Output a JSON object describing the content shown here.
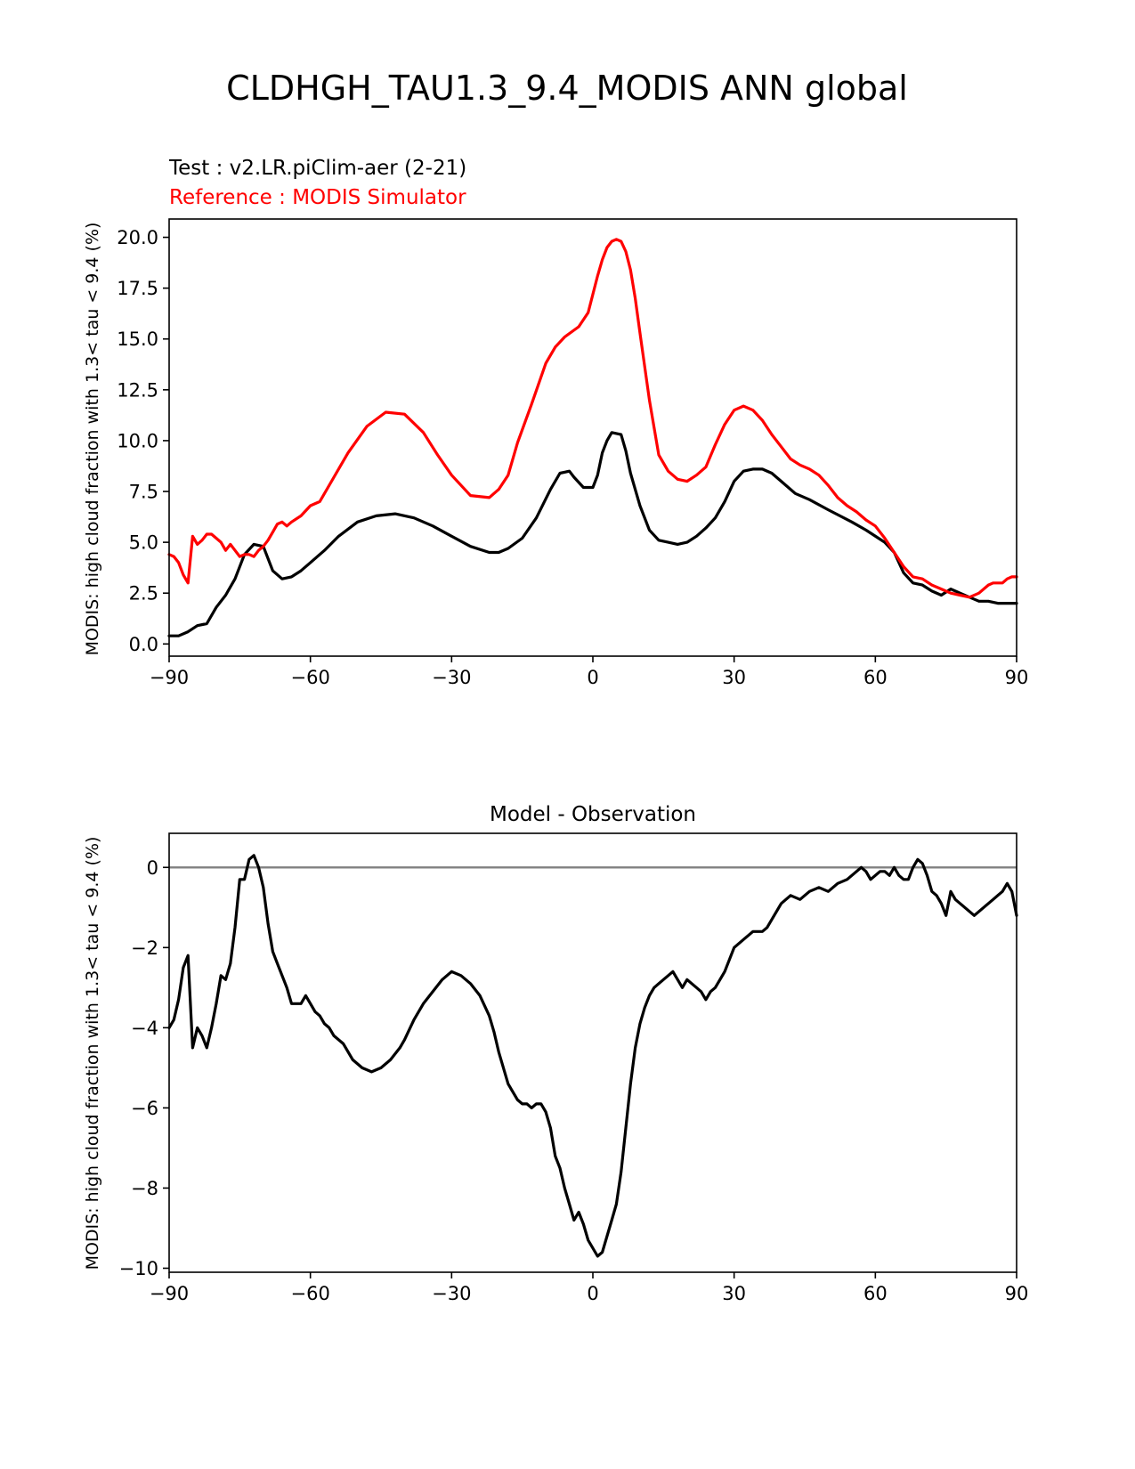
{
  "figure": {
    "title": "CLDHGH_TAU1.3_9.4_MODIS ANN global"
  },
  "colors": {
    "test": "#000000",
    "reference": "#ff0000",
    "zero_line": "#808080"
  },
  "chart_data": [
    {
      "type": "line",
      "name": "top",
      "test_label": "Test : v2.LR.piClim-aer (2-21)",
      "reference_label": "Reference : MODIS Simulator",
      "xlabel": "",
      "ylabel": "MODIS: high cloud fraction with 1.3< tau < 9.4 (%)",
      "xlim": [
        -90,
        90
      ],
      "ylim": [
        -0.6,
        20.9
      ],
      "xticks": [
        -90,
        -60,
        -30,
        0,
        30,
        60,
        90
      ],
      "xtick_labels": [
        "−90",
        "−60",
        "−30",
        "0",
        "30",
        "60",
        "90"
      ],
      "yticks": [
        0.0,
        2.5,
        5.0,
        7.5,
        10.0,
        12.5,
        15.0,
        17.5,
        20.0
      ],
      "ytick_labels": [
        "0.0",
        "2.5",
        "5.0",
        "7.5",
        "10.0",
        "12.5",
        "15.0",
        "17.5",
        "20.0"
      ],
      "grid": false,
      "series": [
        {
          "role": "test",
          "color": "#000000",
          "x": [
            -90,
            -88,
            -86,
            -84,
            -82,
            -80,
            -78,
            -76,
            -74,
            -72,
            -70,
            -68,
            -66,
            -64,
            -62,
            -60,
            -57,
            -54,
            -50,
            -46,
            -42,
            -38,
            -34,
            -30,
            -26,
            -22,
            -20,
            -18,
            -15,
            -12,
            -9,
            -7,
            -5,
            -4,
            -2,
            0,
            1,
            2,
            3,
            4,
            6,
            7,
            8,
            10,
            12,
            14,
            16,
            18,
            20,
            22,
            24,
            26,
            28,
            30,
            32,
            34,
            36,
            38,
            40,
            43,
            46,
            50,
            55,
            58,
            62,
            64,
            66,
            68,
            70,
            72,
            74,
            76,
            78,
            80,
            82,
            84,
            86,
            88,
            90
          ],
          "y": [
            0.4,
            0.4,
            0.6,
            0.9,
            1.0,
            1.8,
            2.4,
            3.2,
            4.4,
            4.9,
            4.8,
            3.6,
            3.2,
            3.3,
            3.6,
            4.0,
            4.6,
            5.3,
            6.0,
            6.3,
            6.4,
            6.2,
            5.8,
            5.3,
            4.8,
            4.5,
            4.5,
            4.7,
            5.2,
            6.2,
            7.6,
            8.4,
            8.5,
            8.2,
            7.7,
            7.7,
            8.3,
            9.4,
            10.0,
            10.4,
            10.3,
            9.5,
            8.4,
            6.8,
            5.6,
            5.1,
            5.0,
            4.9,
            5.0,
            5.3,
            5.7,
            6.2,
            7.0,
            8.0,
            8.5,
            8.6,
            8.6,
            8.4,
            8.0,
            7.4,
            7.1,
            6.6,
            6.0,
            5.6,
            5.0,
            4.5,
            3.5,
            3.0,
            2.9,
            2.6,
            2.4,
            2.7,
            2.5,
            2.3,
            2.1,
            2.1,
            2.0,
            2.0,
            2.0
          ]
        },
        {
          "role": "reference",
          "color": "#ff0000",
          "x": [
            -90,
            -89,
            -88,
            -87,
            -86,
            -85,
            -84,
            -83,
            -82,
            -81,
            -80,
            -79,
            -78,
            -77,
            -76,
            -75,
            -74,
            -73,
            -72,
            -71,
            -70,
            -69,
            -68,
            -67,
            -66,
            -65,
            -64,
            -62,
            -60,
            -58,
            -55,
            -52,
            -48,
            -44,
            -40,
            -36,
            -33,
            -30,
            -26,
            -22,
            -20,
            -18,
            -16,
            -13,
            -10,
            -8,
            -6,
            -3,
            -1,
            0,
            1,
            2,
            3,
            4,
            5,
            6,
            7,
            8,
            9,
            10,
            12,
            14,
            16,
            18,
            20,
            22,
            24,
            26,
            28,
            30,
            32,
            34,
            36,
            38,
            40,
            42,
            44,
            46,
            48,
            50,
            52,
            54,
            56,
            58,
            60,
            62,
            64,
            66,
            68,
            70,
            72,
            74,
            76,
            78,
            80,
            82,
            84,
            85,
            86,
            87,
            88,
            89,
            90
          ],
          "y": [
            4.4,
            4.3,
            4.0,
            3.4,
            3.0,
            5.3,
            4.9,
            5.1,
            5.4,
            5.4,
            5.2,
            5.0,
            4.6,
            4.9,
            4.6,
            4.3,
            4.4,
            4.4,
            4.3,
            4.6,
            4.8,
            5.1,
            5.5,
            5.9,
            6.0,
            5.8,
            6.0,
            6.3,
            6.8,
            7.0,
            8.2,
            9.4,
            10.7,
            11.4,
            11.3,
            10.4,
            9.3,
            8.3,
            7.3,
            7.2,
            7.6,
            8.3,
            9.9,
            11.8,
            13.8,
            14.6,
            15.1,
            15.6,
            16.3,
            17.2,
            18.1,
            18.9,
            19.5,
            19.8,
            19.9,
            19.8,
            19.3,
            18.4,
            17.0,
            15.3,
            12.0,
            9.3,
            8.5,
            8.1,
            8.0,
            8.3,
            8.7,
            9.8,
            10.8,
            11.5,
            11.7,
            11.5,
            11.0,
            10.3,
            9.7,
            9.1,
            8.8,
            8.6,
            8.3,
            7.8,
            7.2,
            6.8,
            6.5,
            6.1,
            5.8,
            5.2,
            4.5,
            3.8,
            3.3,
            3.2,
            2.9,
            2.7,
            2.5,
            2.4,
            2.3,
            2.5,
            2.9,
            3.0,
            3.0,
            3.0,
            3.2,
            3.3,
            3.3
          ]
        }
      ]
    },
    {
      "type": "line",
      "name": "bottom",
      "title": "Model - Observation",
      "xlabel": "",
      "ylabel": "MODIS: high cloud fraction with 1.3< tau < 9.4 (%)",
      "xlim": [
        -90,
        90
      ],
      "ylim": [
        -10.1,
        0.85
      ],
      "xticks": [
        -90,
        -60,
        -30,
        0,
        30,
        60,
        90
      ],
      "xtick_labels": [
        "−90",
        "−60",
        "−30",
        "0",
        "30",
        "60",
        "90"
      ],
      "yticks": [
        -10,
        -8,
        -6,
        -4,
        -2,
        0
      ],
      "ytick_labels": [
        "−10",
        "−8",
        "−6",
        "−4",
        "−2",
        "0"
      ],
      "hline": 0,
      "grid": false,
      "series": [
        {
          "role": "difference",
          "color": "#000000",
          "x": [
            -90,
            -89,
            -88,
            -87,
            -86,
            -85,
            -84,
            -83,
            -82,
            -81,
            -80,
            -79,
            -78,
            -77,
            -76,
            -75,
            -74,
            -73,
            -72,
            -71,
            -70,
            -69,
            -68,
            -67,
            -66,
            -65,
            -64,
            -63,
            -62,
            -61,
            -60,
            -59,
            -58,
            -57,
            -56,
            -55,
            -53,
            -51,
            -49,
            -47,
            -45,
            -43,
            -41,
            -40,
            -38,
            -36,
            -34,
            -32,
            -30,
            -28,
            -26,
            -24,
            -22,
            -21,
            -20,
            -19,
            -18,
            -17,
            -16,
            -15,
            -14,
            -13,
            -12,
            -11,
            -10,
            -9,
            -8,
            -7,
            -6,
            -5,
            -4,
            -3,
            -2,
            -1,
            0,
            1,
            2,
            3,
            4,
            5,
            6,
            7,
            8,
            9,
            10,
            11,
            12,
            13,
            14,
            15,
            16,
            17,
            18,
            19,
            20,
            21,
            22,
            23,
            24,
            25,
            26,
            27,
            28,
            29,
            30,
            32,
            34,
            35,
            36,
            37,
            38,
            39,
            40,
            42,
            44,
            46,
            48,
            50,
            52,
            54,
            56,
            57,
            58,
            59,
            60,
            61,
            62,
            63,
            64,
            65,
            66,
            67,
            68,
            69,
            70,
            71,
            72,
            73,
            74,
            75,
            76,
            77,
            78,
            79,
            80,
            81,
            82,
            83,
            84,
            85,
            86,
            87,
            88,
            89,
            90
          ],
          "y": [
            -4.0,
            -3.8,
            -3.3,
            -2.5,
            -2.2,
            -4.5,
            -4.0,
            -4.2,
            -4.5,
            -4.0,
            -3.4,
            -2.7,
            -2.8,
            -2.4,
            -1.5,
            -0.3,
            -0.3,
            0.2,
            0.3,
            0.0,
            -0.5,
            -1.4,
            -2.1,
            -2.4,
            -2.7,
            -3.0,
            -3.4,
            -3.4,
            -3.4,
            -3.2,
            -3.4,
            -3.6,
            -3.7,
            -3.9,
            -4.0,
            -4.2,
            -4.4,
            -4.8,
            -5.0,
            -5.1,
            -5.0,
            -4.8,
            -4.5,
            -4.3,
            -3.8,
            -3.4,
            -3.1,
            -2.8,
            -2.6,
            -2.7,
            -2.9,
            -3.2,
            -3.7,
            -4.1,
            -4.6,
            -5.0,
            -5.4,
            -5.6,
            -5.8,
            -5.9,
            -5.9,
            -6.0,
            -5.9,
            -5.9,
            -6.1,
            -6.5,
            -7.2,
            -7.5,
            -8.0,
            -8.4,
            -8.8,
            -8.6,
            -8.9,
            -9.3,
            -9.5,
            -9.7,
            -9.6,
            -9.2,
            -8.8,
            -8.4,
            -7.6,
            -6.5,
            -5.4,
            -4.5,
            -3.9,
            -3.5,
            -3.2,
            -3.0,
            -2.9,
            -2.8,
            -2.7,
            -2.6,
            -2.8,
            -3.0,
            -2.8,
            -2.9,
            -3.0,
            -3.1,
            -3.3,
            -3.1,
            -3.0,
            -2.8,
            -2.6,
            -2.3,
            -2.0,
            -1.8,
            -1.6,
            -1.6,
            -1.6,
            -1.5,
            -1.3,
            -1.1,
            -0.9,
            -0.7,
            -0.8,
            -0.6,
            -0.5,
            -0.6,
            -0.4,
            -0.3,
            -0.1,
            0.0,
            -0.1,
            -0.3,
            -0.2,
            -0.1,
            -0.1,
            -0.2,
            0.0,
            -0.2,
            -0.3,
            -0.3,
            0.0,
            0.2,
            0.1,
            -0.2,
            -0.6,
            -0.7,
            -0.9,
            -1.2,
            -0.6,
            -0.8,
            -0.9,
            -1.0,
            -1.1,
            -1.2,
            -1.1,
            -1.0,
            -0.9,
            -0.8,
            -0.7,
            -0.6,
            -0.4,
            -0.6,
            -1.2
          ]
        }
      ]
    }
  ]
}
